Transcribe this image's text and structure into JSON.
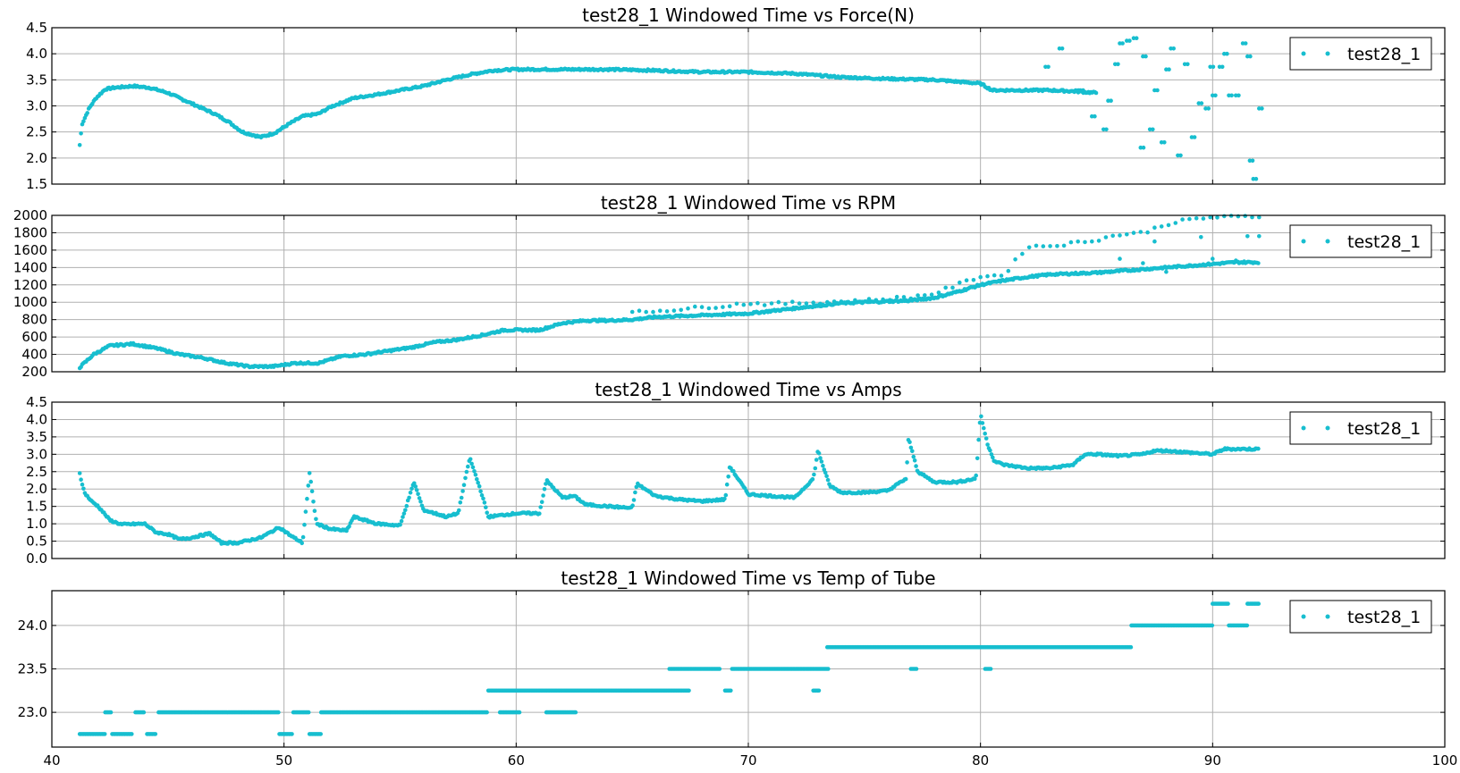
{
  "marker_color": "#17becf",
  "x_axis": {
    "xlim": [
      40,
      100
    ],
    "ticks": [
      40,
      50,
      60,
      70,
      80,
      90,
      100
    ]
  },
  "chart_data": [
    {
      "type": "scatter",
      "title": "test28_1 Windowed Time vs Force(N)",
      "legend": "test28_1",
      "legend_position": "top-right",
      "grid": true,
      "xlim": [
        40,
        100
      ],
      "ylim": [
        1.5,
        4.5
      ],
      "yticks": [
        "1.5",
        "2.0",
        "2.5",
        "3.0",
        "3.5",
        "4.0",
        "4.5"
      ],
      "anchors": [
        [
          41.2,
          2.25
        ],
        [
          41.3,
          2.65
        ],
        [
          41.6,
          2.95
        ],
        [
          41.9,
          3.15
        ],
        [
          42.3,
          3.32
        ],
        [
          42.7,
          3.35
        ],
        [
          43.5,
          3.38
        ],
        [
          44.2,
          3.35
        ],
        [
          45,
          3.25
        ],
        [
          46,
          3.05
        ],
        [
          47,
          2.85
        ],
        [
          47.6,
          2.7
        ],
        [
          48.2,
          2.5
        ],
        [
          49.0,
          2.4
        ],
        [
          49.6,
          2.48
        ],
        [
          50.2,
          2.65
        ],
        [
          50.8,
          2.8
        ],
        [
          51.5,
          2.85
        ],
        [
          52,
          2.98
        ],
        [
          53,
          3.15
        ],
        [
          54,
          3.22
        ],
        [
          55,
          3.3
        ],
        [
          56,
          3.38
        ],
        [
          57,
          3.5
        ],
        [
          58,
          3.6
        ],
        [
          59,
          3.68
        ],
        [
          60,
          3.7
        ],
        [
          62,
          3.7
        ],
        [
          64,
          3.7
        ],
        [
          66,
          3.68
        ],
        [
          68,
          3.65
        ],
        [
          70,
          3.65
        ],
        [
          72,
          3.62
        ],
        [
          74,
          3.55
        ],
        [
          76,
          3.52
        ],
        [
          78,
          3.5
        ],
        [
          80,
          3.43
        ],
        [
          80.5,
          3.3
        ],
        [
          82,
          3.3
        ],
        [
          83,
          3.3
        ],
        [
          84,
          3.28
        ],
        [
          85,
          3.25
        ]
      ],
      "scatter_points": [
        [
          82.8,
          3.75
        ],
        [
          83.4,
          4.1
        ],
        [
          84.3,
          3.3
        ],
        [
          84.8,
          2.8
        ],
        [
          85.3,
          2.55
        ],
        [
          85.8,
          3.8
        ],
        [
          86.3,
          4.25
        ],
        [
          86.6,
          4.3
        ],
        [
          87,
          3.95
        ],
        [
          87.5,
          3.3
        ],
        [
          87.8,
          2.3
        ],
        [
          88.2,
          4.1
        ],
        [
          88.5,
          2.05
        ],
        [
          88.8,
          3.8
        ],
        [
          89.1,
          2.4
        ],
        [
          89.4,
          3.05
        ],
        [
          89.7,
          2.95
        ],
        [
          90,
          3.2
        ],
        [
          90.3,
          3.75
        ],
        [
          90.7,
          3.2
        ],
        [
          91.0,
          3.2
        ],
        [
          91.3,
          4.2
        ],
        [
          91.6,
          1.95
        ],
        [
          91.75,
          1.6
        ],
        [
          92,
          2.95
        ],
        [
          86.9,
          2.2
        ],
        [
          87.3,
          2.55
        ],
        [
          88.0,
          3.7
        ],
        [
          89.9,
          3.75
        ],
        [
          90.5,
          4.0
        ],
        [
          91.5,
          3.95
        ],
        [
          84.1,
          3.3
        ],
        [
          85.5,
          3.1
        ],
        [
          86.0,
          4.2
        ]
      ]
    },
    {
      "type": "scatter",
      "title": "test28_1 Windowed Time vs RPM",
      "legend": "test28_1",
      "legend_position": "top-right",
      "grid": true,
      "xlim": [
        40,
        100
      ],
      "ylim": [
        200,
        2000
      ],
      "yticks": [
        "200",
        "400",
        "600",
        "800",
        "1000",
        "1200",
        "1400",
        "1600",
        "1800",
        "2000"
      ],
      "anchors": [
        [
          41.2,
          250
        ],
        [
          41.8,
          400
        ],
        [
          42.5,
          500
        ],
        [
          43.5,
          520
        ],
        [
          44.5,
          470
        ],
        [
          45.5,
          400
        ],
        [
          46.5,
          360
        ],
        [
          47.5,
          300
        ],
        [
          48.5,
          260
        ],
        [
          49.5,
          260
        ],
        [
          50.5,
          300
        ],
        [
          51.5,
          300
        ],
        [
          52.5,
          380
        ],
        [
          53.5,
          400
        ],
        [
          54.5,
          440
        ],
        [
          55.5,
          480
        ],
        [
          56.5,
          540
        ],
        [
          57.5,
          570
        ],
        [
          58.5,
          620
        ],
        [
          59.5,
          680
        ],
        [
          61,
          680
        ],
        [
          62,
          760
        ],
        [
          63,
          790
        ],
        [
          64,
          790
        ],
        [
          65,
          800
        ],
        [
          66,
          830
        ],
        [
          67,
          840
        ],
        [
          68,
          850
        ],
        [
          69,
          860
        ],
        [
          70,
          870
        ],
        [
          71,
          900
        ],
        [
          72,
          930
        ],
        [
          73,
          960
        ],
        [
          74,
          990
        ],
        [
          75,
          1000
        ],
        [
          76,
          1010
        ],
        [
          77,
          1020
        ],
        [
          78,
          1050
        ],
        [
          79,
          1120
        ],
        [
          80,
          1200
        ],
        [
          81,
          1250
        ],
        [
          82,
          1290
        ],
        [
          83,
          1320
        ],
        [
          84,
          1330
        ],
        [
          85,
          1340
        ],
        [
          86,
          1360
        ],
        [
          87,
          1380
        ],
        [
          88,
          1400
        ],
        [
          89,
          1420
        ],
        [
          90,
          1440
        ],
        [
          91,
          1460
        ],
        [
          92,
          1460
        ]
      ],
      "upper_band": [
        [
          65,
          880
        ],
        [
          66,
          900
        ],
        [
          67,
          920
        ],
        [
          68,
          940
        ],
        [
          69,
          960
        ],
        [
          70,
          990
        ],
        [
          71,
          980
        ],
        [
          72,
          990
        ],
        [
          73,
          1000
        ],
        [
          74,
          1010
        ],
        [
          75,
          1020
        ],
        [
          76,
          1040
        ],
        [
          77,
          1060
        ],
        [
          78,
          1100
        ],
        [
          79,
          1200
        ],
        [
          80,
          1300
        ],
        [
          81,
          1310
        ],
        [
          82,
          1640
        ],
        [
          83,
          1650
        ],
        [
          84,
          1680
        ],
        [
          85,
          1720
        ],
        [
          86,
          1780
        ],
        [
          87,
          1800
        ],
        [
          88,
          1900
        ],
        [
          89,
          1950
        ],
        [
          90,
          1980
        ],
        [
          91,
          1980
        ],
        [
          92,
          1990
        ]
      ],
      "lower_band": [
        [
          86,
          1500
        ],
        [
          87,
          1450
        ],
        [
          88,
          1350
        ],
        [
          89,
          1420
        ],
        [
          90,
          1500
        ],
        [
          91,
          1480
        ],
        [
          92,
          1760
        ],
        [
          87.5,
          1700
        ],
        [
          89.5,
          1750
        ],
        [
          91.5,
          1760
        ]
      ]
    },
    {
      "type": "scatter",
      "title": "test28_1 Windowed Time vs Amps",
      "legend": "test28_1",
      "legend_position": "top-right",
      "grid": true,
      "xlim": [
        40,
        100
      ],
      "ylim": [
        0.0,
        4.5
      ],
      "yticks": [
        "0.0",
        "0.5",
        "1.0",
        "1.5",
        "2.0",
        "2.5",
        "3.0",
        "3.5",
        "4.0",
        "4.5"
      ],
      "anchors": [
        [
          41.2,
          2.45
        ],
        [
          41.4,
          1.9
        ],
        [
          41.7,
          1.65
        ],
        [
          42,
          1.5
        ],
        [
          42.5,
          1.1
        ],
        [
          43,
          0.98
        ],
        [
          44,
          1.0
        ],
        [
          44.5,
          0.75
        ],
        [
          45,
          0.7
        ],
        [
          45.5,
          0.55
        ],
        [
          46,
          0.6
        ],
        [
          46.8,
          0.72
        ],
        [
          47.3,
          0.45
        ],
        [
          48,
          0.45
        ],
        [
          49,
          0.6
        ],
        [
          49.8,
          0.9
        ],
        [
          50.3,
          0.65
        ],
        [
          50.8,
          0.45
        ],
        [
          51.1,
          2.45
        ],
        [
          51.4,
          1.0
        ],
        [
          52,
          0.85
        ],
        [
          52.7,
          0.8
        ],
        [
          53,
          1.2
        ],
        [
          54,
          1.0
        ],
        [
          55,
          0.95
        ],
        [
          55.6,
          2.2
        ],
        [
          56,
          1.4
        ],
        [
          57,
          1.2
        ],
        [
          57.5,
          1.3
        ],
        [
          58,
          2.9
        ],
        [
          58.5,
          1.9
        ],
        [
          58.8,
          1.2
        ],
        [
          60,
          1.3
        ],
        [
          61,
          1.3
        ],
        [
          61.3,
          2.25
        ],
        [
          62,
          1.75
        ],
        [
          62.5,
          1.8
        ],
        [
          63,
          1.55
        ],
        [
          64,
          1.5
        ],
        [
          65,
          1.45
        ],
        [
          65.2,
          2.15
        ],
        [
          66,
          1.8
        ],
        [
          67,
          1.7
        ],
        [
          68,
          1.65
        ],
        [
          69,
          1.7
        ],
        [
          69.2,
          2.65
        ],
        [
          70,
          1.85
        ],
        [
          71,
          1.8
        ],
        [
          72,
          1.75
        ],
        [
          72.8,
          2.3
        ],
        [
          73,
          3.1
        ],
        [
          73.5,
          2.1
        ],
        [
          74,
          1.9
        ],
        [
          75,
          1.9
        ],
        [
          76,
          1.95
        ],
        [
          76.8,
          2.3
        ],
        [
          76.9,
          3.45
        ],
        [
          77.3,
          2.5
        ],
        [
          78,
          2.2
        ],
        [
          79,
          2.2
        ],
        [
          79.8,
          2.3
        ],
        [
          80,
          4.15
        ],
        [
          80.3,
          3.3
        ],
        [
          80.6,
          2.8
        ],
        [
          81,
          2.7
        ],
        [
          82,
          2.6
        ],
        [
          83,
          2.6
        ],
        [
          84,
          2.7
        ],
        [
          84.5,
          3.0
        ],
        [
          85,
          3.0
        ],
        [
          86,
          2.95
        ],
        [
          87,
          3.0
        ],
        [
          87.5,
          3.1
        ],
        [
          88,
          3.1
        ],
        [
          89,
          3.05
        ],
        [
          90,
          3.0
        ],
        [
          90.5,
          3.15
        ],
        [
          91,
          3.15
        ],
        [
          92,
          3.15
        ]
      ]
    },
    {
      "type": "scatter",
      "title": "test28_1 Windowed Time vs Temp of Tube",
      "legend": "test28_1",
      "legend_position": "top-right",
      "grid": true,
      "xlim": [
        40,
        100
      ],
      "ylim": [
        22.6,
        24.4
      ],
      "yticks": [
        "23.0",
        "23.5",
        "24.0"
      ],
      "segments": [
        [
          41.2,
          42.3,
          22.75
        ],
        [
          42.3,
          42.6,
          23.0
        ],
        [
          42.6,
          43.5,
          22.75
        ],
        [
          43.6,
          44.0,
          23.0
        ],
        [
          44.1,
          44.5,
          22.75
        ],
        [
          44.6,
          49.8,
          23.0
        ],
        [
          49.8,
          50.4,
          22.75
        ],
        [
          50.4,
          51.1,
          23.0
        ],
        [
          51.1,
          51.6,
          22.75
        ],
        [
          51.6,
          58.8,
          23.0
        ],
        [
          58.8,
          63.0,
          23.25
        ],
        [
          59.3,
          60.2,
          23.0
        ],
        [
          61.3,
          62.6,
          23.0
        ],
        [
          63.0,
          67.5,
          23.25
        ],
        [
          66.6,
          68.8,
          23.5
        ],
        [
          69.3,
          73.5,
          23.5
        ],
        [
          73.4,
          86.5,
          23.75
        ],
        [
          77.0,
          77.3,
          23.5
        ],
        [
          80.2,
          80.5,
          23.5
        ],
        [
          86.5,
          90,
          24.0
        ],
        [
          90,
          90.7,
          24.25
        ],
        [
          90.7,
          91.5,
          24.0
        ],
        [
          91.5,
          92.0,
          24.25
        ],
        [
          72.8,
          73.1,
          23.25
        ],
        [
          69.0,
          69.3,
          23.25
        ]
      ]
    }
  ]
}
